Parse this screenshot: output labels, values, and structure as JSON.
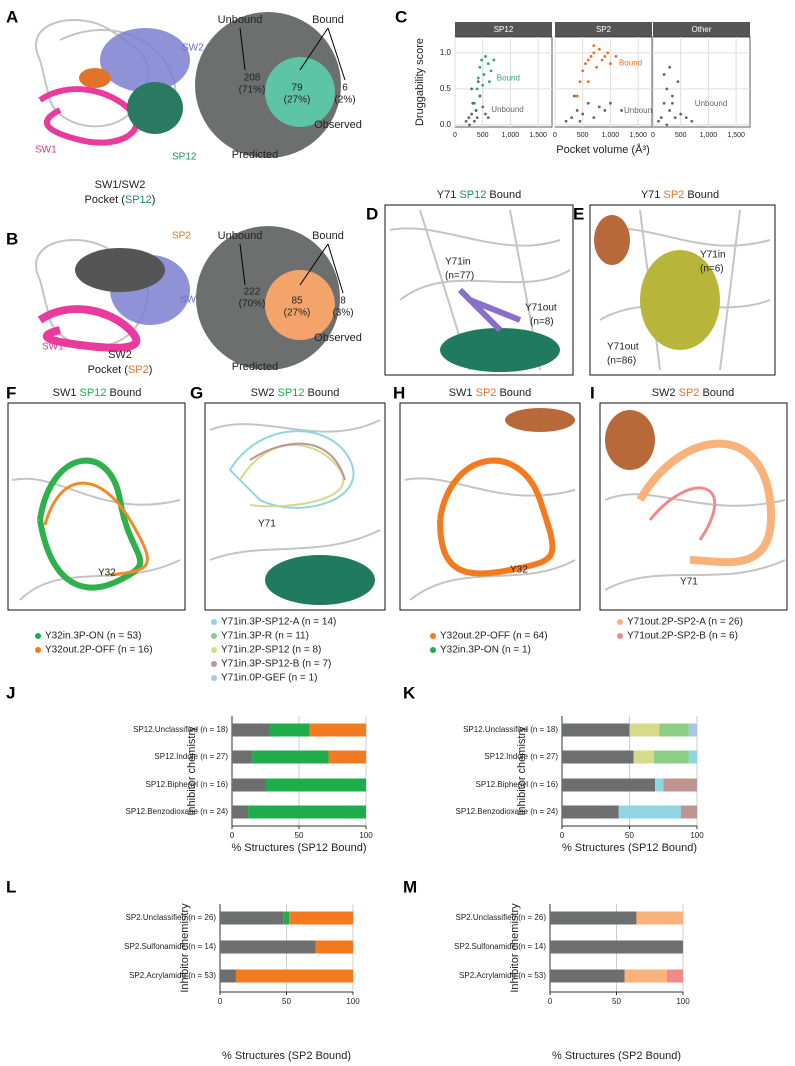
{
  "panel_labels": [
    "A",
    "B",
    "C",
    "D",
    "E",
    "F",
    "G",
    "H",
    "I",
    "J",
    "K",
    "L",
    "M"
  ],
  "panel_a": {
    "sw2": "SW2",
    "sw1": "SW1",
    "sp12": "SP12",
    "caption": [
      "SW1/SW2",
      "Pocket (",
      "SP12",
      ")"
    ],
    "venn": {
      "unbound": "Unbound",
      "bound": "Bound",
      "n1": "208",
      "p1": "(71%)",
      "n2": "79",
      "p2": "(27%)",
      "n3": "6",
      "p3": "(2%)",
      "predicted": "Predicted",
      "observed": "Observed"
    }
  },
  "panel_b": {
    "sp2": "SP2",
    "sw2": "SW2",
    "sw1": "SW1",
    "caption": [
      "SW2",
      "Pocket (",
      "SP2",
      ")"
    ],
    "venn": {
      "unbound": "Unbound",
      "bound": "Bound",
      "n1": "222",
      "p1": "(70%)",
      "n2": "85",
      "p2": "(27%)",
      "n3": "8",
      "p3": "(3%)",
      "predicted": "Predicted",
      "observed": "Observed"
    }
  },
  "panel_d": {
    "title": [
      "Y71 ",
      "SP12",
      " Bound"
    ],
    "in": "Y71in",
    "in_n": "(n=77)",
    "out": "Y71out",
    "out_n": "(n=8)"
  },
  "panel_e": {
    "title": [
      "Y71 ",
      "SP2",
      " Bound"
    ],
    "in": "Y71in",
    "in_n": "(n=6)",
    "out": "Y71out",
    "out_n": "(n=86)"
  },
  "panel_f": {
    "title": [
      "SW1 ",
      "SP12",
      " Bound"
    ],
    "label": "Y32",
    "legend": [
      "Y32in.3P-ON (n = 53)",
      "Y32out.2P-OFF (n = 16)"
    ]
  },
  "panel_g": {
    "title": [
      "SW2 ",
      "SP12",
      " Bound"
    ],
    "label": "Y71",
    "legend": [
      "Y71in.3P-SP12-A (n = 14)",
      "Y71in.3P-R (n = 11)",
      "Y71in.2P-SP12 (n = 8)",
      "Y71in.3P-SP12-B (n = 7)",
      "Y71in.0P-GEF (n = 1)"
    ]
  },
  "panel_h": {
    "title": [
      "SW1 ",
      "SP2",
      " Bound"
    ],
    "label": "Y32",
    "legend": [
      "Y32out.2P-OFF (n = 64)",
      "Y32in.3P-ON (n = 1)"
    ]
  },
  "panel_i": {
    "title": [
      "SW2 ",
      "SP2",
      " Bound"
    ],
    "label": "Y71",
    "legend": [
      "Y71out.2P-SP2-A (n = 26)",
      "Y71out.2P-SP2-B (n = 6)"
    ]
  },
  "chart_data": [
    {
      "type": "scatter",
      "ylabel": "Druggability score",
      "xlabel": "Pocket volume (Å³)",
      "xlim": [
        0,
        1750
      ],
      "xticks": [
        0,
        500,
        {
          "value": 1000,
          "label": "1,000"
        },
        {
          "value": 1500,
          "label": "1,500"
        }
      ],
      "ylim": [
        -0.03,
        1.22
      ],
      "yticks": [
        {
          "value": 0,
          "label": "0.0"
        },
        0.5,
        {
          "value": 1,
          "label": "1.0"
        }
      ],
      "grid": true,
      "panels": [
        {
          "facet": "SP12",
          "series": [
            {
              "name": "Bound",
              "color": "#2fa57e",
              "x": [
                350,
                400,
                420,
                450,
                480,
                500,
                520,
                550,
                600,
                620,
                650,
                700,
                450,
                380
              ],
              "y": [
                0.3,
                0.5,
                0.65,
                0.8,
                0.9,
                0.55,
                0.7,
                0.95,
                0.85,
                0.6,
                0.75,
                0.9,
                0.4,
                0.2
              ]
            },
            {
              "name": "Unbound",
              "color": "#666666",
              "x": [
                200,
                250,
                300,
                320,
                350,
                380,
                400,
                450,
                500,
                550,
                600,
                300,
                260,
                420
              ],
              "y": [
                0.05,
                0.1,
                0.15,
                0.3,
                0.05,
                0.2,
                0.1,
                0.4,
                0.25,
                0.15,
                0.1,
                0.5,
                0.0,
                0.6
              ]
            }
          ]
        },
        {
          "facet": "SP2",
          "series": [
            {
              "name": "Bound",
              "color": "#ea6f1e",
              "x": [
                400,
                450,
                500,
                550,
                600,
                650,
                700,
                750,
                800,
                850,
                900,
                950,
                1000,
                1100,
                600,
                700
              ],
              "y": [
                0.4,
                0.6,
                0.75,
                0.85,
                0.9,
                0.95,
                1.0,
                0.8,
                1.05,
                0.9,
                0.95,
                1.0,
                0.85,
                0.95,
                0.6,
                1.1
              ]
            },
            {
              "name": "Unbound",
              "color": "#666666",
              "x": [
                200,
                300,
                400,
                500,
                600,
                700,
                800,
                900,
                1000,
                1200,
                350,
                450
              ],
              "y": [
                0.05,
                0.1,
                0.2,
                0.15,
                0.3,
                0.1,
                0.25,
                0.2,
                0.3,
                0.2,
                0.4,
                0.05
              ]
            }
          ]
        },
        {
          "facet": "Other",
          "series": [
            {
              "name": "Unbound",
              "color": "#666666",
              "x": [
                100,
                150,
                200,
                250,
                300,
                350,
                400,
                450,
                500,
                200,
                300,
                250,
                600,
                700,
                350
              ],
              "y": [
                0.05,
                0.1,
                0.3,
                0.5,
                0.2,
                0.4,
                0.1,
                0.6,
                0.15,
                0.7,
                0.8,
                0.0,
                0.1,
                0.05,
                0.3
              ]
            }
          ]
        }
      ]
    },
    {
      "type": "bar",
      "stacked": true,
      "ylabel": "Inhibitor chemistry",
      "xlabel": "% Structures (SP12 Bound)",
      "xlim": [
        0,
        100
      ],
      "xticks": [
        0,
        50,
        100
      ],
      "grid": true,
      "categories": [
        "SP12.Unclassified (n = 18)",
        "SP12.Indole (n = 27)",
        "SP12.Biphenyl (n = 16)",
        "SP12.Benzodioxane (n = 24)"
      ],
      "series": [
        {
          "color": "#6d6e6e",
          "values": [
            28,
            15,
            25,
            12
          ]
        },
        {
          "color": "#1fac4b",
          "values": [
            30,
            57,
            75,
            88
          ]
        },
        {
          "color": "#f47a20",
          "values": [
            42,
            28,
            0,
            0
          ]
        }
      ]
    },
    {
      "type": "bar",
      "stacked": true,
      "ylabel": "Inhibitor chemistry",
      "xlabel": "% Structures (SP12 Bound)",
      "xlim": [
        0,
        100
      ],
      "xticks": [
        0,
        50,
        100
      ],
      "grid": true,
      "categories": [
        "SP12.Unclassified (n = 18)",
        "SP12.Indole (n = 27)",
        "SP12.Biphenyl (n = 16)",
        "SP12.Benzodioxane (n = 24)"
      ],
      "series": [
        {
          "color": "#6d6e6e",
          "values": [
            50,
            53,
            69,
            42
          ]
        },
        {
          "color": "#d6da8a",
          "values": [
            22,
            15,
            0,
            0
          ]
        },
        {
          "color": "#8ccf84",
          "values": [
            22,
            26,
            0,
            0
          ]
        },
        {
          "color": "#8fd6e2",
          "values": [
            0,
            6,
            6,
            46
          ]
        },
        {
          "color": "#bf9592",
          "values": [
            0,
            0,
            25,
            12
          ]
        },
        {
          "color": "#a9c6e8",
          "values": [
            6,
            0,
            0,
            0
          ]
        }
      ]
    },
    {
      "type": "bar",
      "stacked": true,
      "ylabel": "Inhibitor chemistry",
      "xlabel": "% Structures (SP2 Bound)",
      "xlim": [
        0,
        100
      ],
      "xticks": [
        0,
        50,
        100
      ],
      "grid": true,
      "categories": [
        "SP2.Unclassified (n = 26)",
        "SP2.Sulfonamide (n = 14)",
        "SP2.Acrylamide (n = 53)"
      ],
      "series": [
        {
          "color": "#6d6e6e",
          "values": [
            48,
            72,
            12
          ]
        },
        {
          "color": "#1fac4b",
          "values": [
            4,
            0,
            0
          ]
        },
        {
          "color": "#f47a20",
          "values": [
            48,
            28,
            88
          ]
        }
      ]
    },
    {
      "type": "bar",
      "stacked": true,
      "ylabel": "Inhibitor chemistry",
      "xlabel": "% Structures (SP2 Bound)",
      "xlim": [
        0,
        100
      ],
      "xticks": [
        0,
        50,
        100
      ],
      "grid": true,
      "categories": [
        "SP2.Unclassified (n = 26)",
        "SP2.Sulfonamide (n = 14)",
        "SP2.Acrylamide (n = 53)"
      ],
      "series": [
        {
          "color": "#6d6e6e",
          "values": [
            65,
            100,
            56
          ]
        },
        {
          "color": "#f9b27a",
          "values": [
            35,
            0,
            32
          ]
        },
        {
          "color": "#f08a8a",
          "values": [
            0,
            0,
            12
          ]
        }
      ]
    }
  ]
}
